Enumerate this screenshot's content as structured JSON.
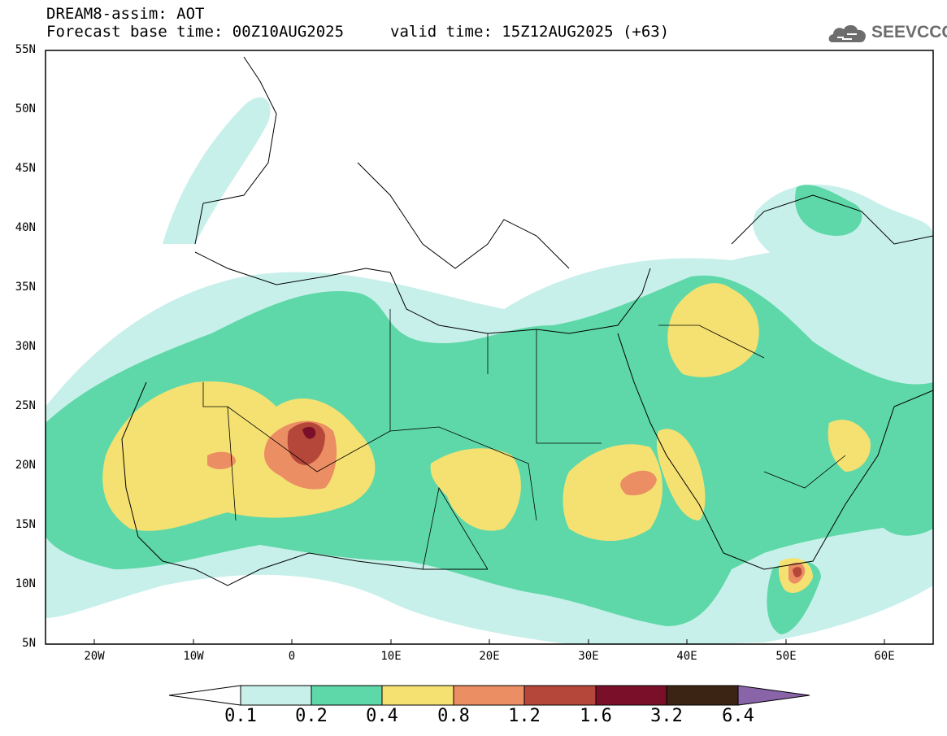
{
  "header": {
    "title": "DREAM8-assim: AOT",
    "base_time": "Forecast base time: 00Z10AUG2025",
    "valid_time": "valid time: 15Z12AUG2025 (+63)",
    "logo_text": "SEEVCCC"
  },
  "axes": {
    "lat_labels": [
      "55N",
      "50N",
      "45N",
      "40N",
      "35N",
      "30N",
      "25N",
      "20N",
      "15N",
      "10N",
      "5N"
    ],
    "lon_labels": [
      "20W",
      "10W",
      "0",
      "10E",
      "20E",
      "30E",
      "40E",
      "50E",
      "60E"
    ]
  },
  "colorbar": {
    "levels": [
      "0.1",
      "0.2",
      "0.4",
      "0.8",
      "1.2",
      "1.6",
      "3.2",
      "6.4"
    ],
    "colors": [
      "#c8f0ea",
      "#5ed8a8",
      "#f5e172",
      "#ec8e63",
      "#b5473a",
      "#7a0f2a",
      "#3b2414",
      "#8a64a8"
    ]
  },
  "map": {
    "background": "#ffffff",
    "lat_range": [
      5,
      55
    ],
    "lon_range": [
      -25,
      65
    ]
  }
}
